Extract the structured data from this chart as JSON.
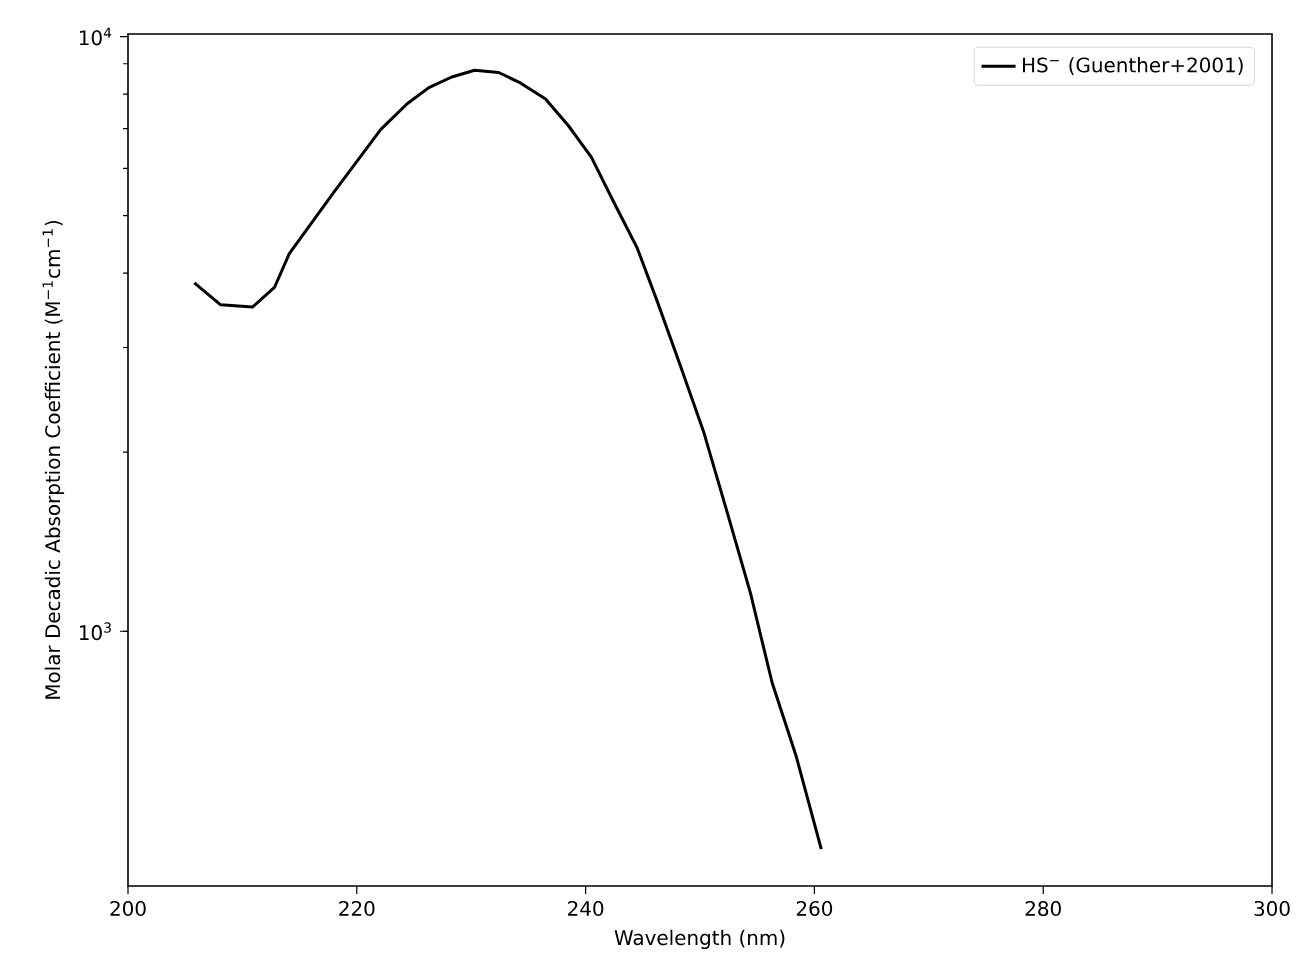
{
  "chart_data": {
    "type": "line",
    "xlabel": "Wavelength (nm)",
    "ylabel": "Molar Decadic Absorption Coefficient (M$^{−1}$cm$^{−1}$)",
    "log": "y",
    "grid": false,
    "legend": "top right",
    "marker": "none",
    "line_style": "solid",
    "xlim": [
      200,
      300
    ],
    "ylim": [
      373,
      10100
    ],
    "xticks": [
      200,
      220,
      240,
      260,
      280,
      300
    ],
    "yticks": [
      {
        "value": 1000,
        "label": "10$^{3}$"
      },
      {
        "value": 10000,
        "label": "10$^{4}$"
      }
    ],
    "series": [
      {
        "name": "HS$^{−}$ (Guenther+2001)",
        "color": "#000000",
        "x": [
          205.8,
          208.1,
          210.9,
          212.8,
          214.1,
          218.0,
          222.1,
          224.4,
          226.3,
          228.3,
          230.3,
          232.4,
          234.2,
          236.5,
          238.5,
          240.5,
          242.4,
          244.5,
          246.2,
          248.3,
          250.3,
          252.3,
          254.4,
          256.3,
          258.4,
          260.6
        ],
        "values": [
          3855,
          3540,
          3510,
          3785,
          4315,
          5475,
          6980,
          7710,
          8205,
          8550,
          8775,
          8700,
          8375,
          7855,
          7080,
          6270,
          5295,
          4415,
          3615,
          2790,
          2170,
          1603,
          1161,
          820,
          617,
          430
        ]
      }
    ]
  }
}
